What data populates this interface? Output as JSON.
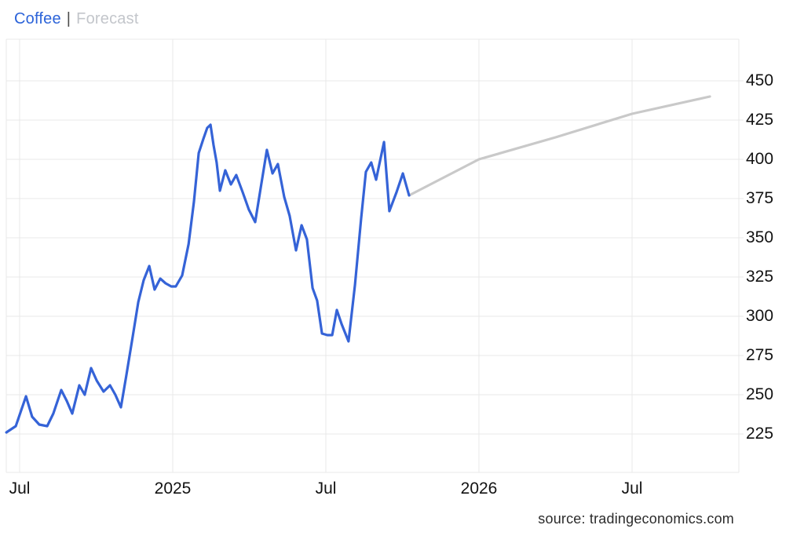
{
  "header": {
    "coffee_label": "Coffee",
    "separator": "|",
    "forecast_label": "Forecast"
  },
  "source": {
    "text": "source: tradingeconomics.com"
  },
  "colors": {
    "history_line": "#3563d7",
    "forecast_line": "#c9c9c9",
    "grid": "#e8e8e8",
    "axis_label": "#121212",
    "coffee_label": "#2b63d9",
    "separator": "#4a4a4a",
    "forecast_label": "#c3c6cb",
    "source_text": "#2b2b2b"
  },
  "chart_data": {
    "type": "line",
    "title": "Coffee price with forecast",
    "x_unit": "months since July 2024",
    "grid": true,
    "legend_position": "top-left",
    "legend": [
      "Coffee",
      "Forecast"
    ],
    "ylim": [
      200,
      477
    ],
    "xlim": [
      -0.52,
      28.2
    ],
    "y_ticks": [
      225,
      250,
      275,
      300,
      325,
      350,
      375,
      400,
      425,
      450
    ],
    "x_ticks": [
      {
        "m": 0,
        "label": "Jul"
      },
      {
        "m": 6,
        "label": "2025"
      },
      {
        "m": 12,
        "label": "Jul"
      },
      {
        "m": 18,
        "label": "2026"
      },
      {
        "m": 24,
        "label": "Jul"
      }
    ],
    "series": [
      {
        "name": "Coffee",
        "color_key": "history_line",
        "points": [
          [
            -0.52,
            226
          ],
          [
            -0.15,
            230
          ],
          [
            0.25,
            249
          ],
          [
            0.49,
            236
          ],
          [
            0.77,
            231
          ],
          [
            1.08,
            230
          ],
          [
            1.32,
            238
          ],
          [
            1.63,
            253
          ],
          [
            1.85,
            246
          ],
          [
            2.06,
            238
          ],
          [
            2.34,
            256
          ],
          [
            2.55,
            250
          ],
          [
            2.8,
            267
          ],
          [
            3.02,
            259
          ],
          [
            3.29,
            252
          ],
          [
            3.54,
            256
          ],
          [
            3.75,
            250
          ],
          [
            3.97,
            242
          ],
          [
            4.18,
            262
          ],
          [
            4.43,
            287
          ],
          [
            4.65,
            309
          ],
          [
            4.86,
            323
          ],
          [
            5.08,
            332
          ],
          [
            5.29,
            317
          ],
          [
            5.51,
            324
          ],
          [
            5.72,
            321
          ],
          [
            5.94,
            319
          ],
          [
            6.12,
            319
          ],
          [
            6.37,
            326
          ],
          [
            6.62,
            346
          ],
          [
            6.83,
            373
          ],
          [
            7.02,
            404
          ],
          [
            7.2,
            413
          ],
          [
            7.35,
            420
          ],
          [
            7.48,
            422
          ],
          [
            7.6,
            409
          ],
          [
            7.72,
            398
          ],
          [
            7.85,
            380
          ],
          [
            8.06,
            393
          ],
          [
            8.28,
            384
          ],
          [
            8.49,
            390
          ],
          [
            8.74,
            379
          ],
          [
            8.98,
            368
          ],
          [
            9.23,
            360
          ],
          [
            9.45,
            382
          ],
          [
            9.69,
            406
          ],
          [
            9.91,
            391
          ],
          [
            10.12,
            397
          ],
          [
            10.37,
            376
          ],
          [
            10.58,
            364
          ],
          [
            10.83,
            342
          ],
          [
            11.05,
            358
          ],
          [
            11.26,
            349
          ],
          [
            11.48,
            318
          ],
          [
            11.66,
            310
          ],
          [
            11.85,
            289
          ],
          [
            12.06,
            288
          ],
          [
            12.25,
            288
          ],
          [
            12.43,
            304
          ],
          [
            12.62,
            295
          ],
          [
            12.89,
            284
          ],
          [
            13.14,
            320
          ],
          [
            13.38,
            362
          ],
          [
            13.57,
            392
          ],
          [
            13.78,
            398
          ],
          [
            13.97,
            387
          ],
          [
            14.28,
            411
          ],
          [
            14.49,
            367
          ],
          [
            14.77,
            379
          ],
          [
            15.02,
            391
          ],
          [
            15.26,
            377
          ]
        ]
      },
      {
        "name": "Forecast",
        "color_key": "forecast_line",
        "points": [
          [
            15.26,
            377
          ],
          [
            18.0,
            400
          ],
          [
            21.0,
            414
          ],
          [
            24.0,
            429
          ],
          [
            27.05,
            440
          ]
        ]
      }
    ]
  }
}
